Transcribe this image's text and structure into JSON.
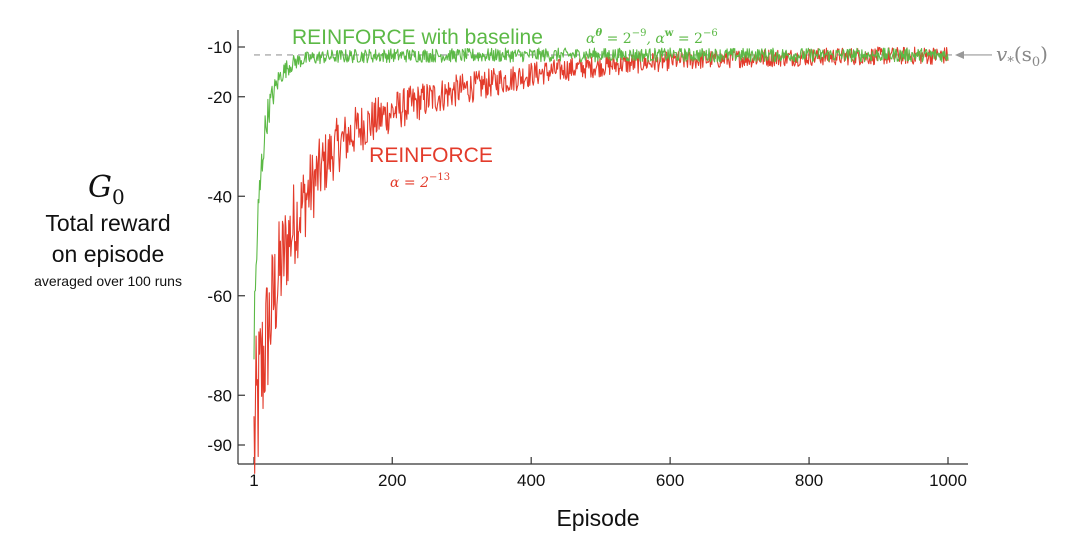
{
  "chart_data": {
    "type": "line",
    "xlabel": "Episode",
    "ylabel_symbol": "G",
    "ylabel_symbol_sub": "0",
    "ylabel_lines": [
      "Total reward",
      "on episode"
    ],
    "ylabel_note": "averaged over 100 runs",
    "xlim": [
      1,
      1000
    ],
    "ylim": [
      -92,
      -9
    ],
    "x_ticks": [
      {
        "value": 1,
        "label": "1"
      },
      {
        "value": 200,
        "label": "200"
      },
      {
        "value": 400,
        "label": "400"
      },
      {
        "value": 600,
        "label": "600"
      },
      {
        "value": 800,
        "label": "800"
      },
      {
        "value": 1000,
        "label": "1000"
      }
    ],
    "y_ticks": [
      {
        "value": -10,
        "label": "-10"
      },
      {
        "value": -20,
        "label": "-20"
      },
      {
        "value": -40,
        "label": "-40"
      },
      {
        "value": -60,
        "label": "-60"
      },
      {
        "value": -80,
        "label": "-80"
      },
      {
        "value": -90,
        "label": "-90"
      }
    ],
    "grid": false,
    "reference_line": {
      "y": -11.6,
      "label_main": "v",
      "label_sub": "*",
      "label_arg": "(s",
      "label_arg_sub": "0",
      "label_close": ")",
      "color": "#999999"
    },
    "series": [
      {
        "name": "REINFORCE with baseline",
        "param_label": "α^θ = 2^−9,  α^w = 2^−6",
        "param_parts": [
          "α",
          "θ",
          " = 2",
          "−9",
          ",  α",
          "w",
          " = 2",
          "−6"
        ],
        "color": "#5cb946",
        "noise": 1.4,
        "x": [
          1,
          5,
          10,
          15,
          20,
          25,
          30,
          35,
          40,
          50,
          60,
          70,
          80,
          100,
          120,
          150,
          200,
          300,
          400,
          500,
          600,
          700,
          800,
          900,
          1000
        ],
        "y": [
          -70,
          -50,
          -38,
          -29,
          -24,
          -21,
          -19,
          -17,
          -15.5,
          -14,
          -13,
          -12.6,
          -12.3,
          -12.0,
          -11.9,
          -11.8,
          -11.7,
          -11.7,
          -11.6,
          -11.6,
          -11.6,
          -11.6,
          -11.6,
          -11.6,
          -11.6
        ]
      },
      {
        "name": "REINFORCE",
        "param_label": "α = 2^−13",
        "param_parts": [
          "α = 2",
          "−13"
        ],
        "color": "#e33b2b",
        "noise": 1.8,
        "x": [
          1,
          10,
          20,
          30,
          40,
          50,
          60,
          80,
          100,
          120,
          150,
          200,
          250,
          300,
          350,
          400,
          450,
          500,
          600,
          700,
          800,
          900,
          1000
        ],
        "y": [
          -90,
          -77,
          -68,
          -60,
          -54,
          -49,
          -45,
          -39,
          -34,
          -30,
          -26.5,
          -23,
          -20.5,
          -18.5,
          -17,
          -15.5,
          -14.5,
          -13.8,
          -12.8,
          -12.3,
          -12.0,
          -11.8,
          -11.7
        ]
      }
    ]
  }
}
